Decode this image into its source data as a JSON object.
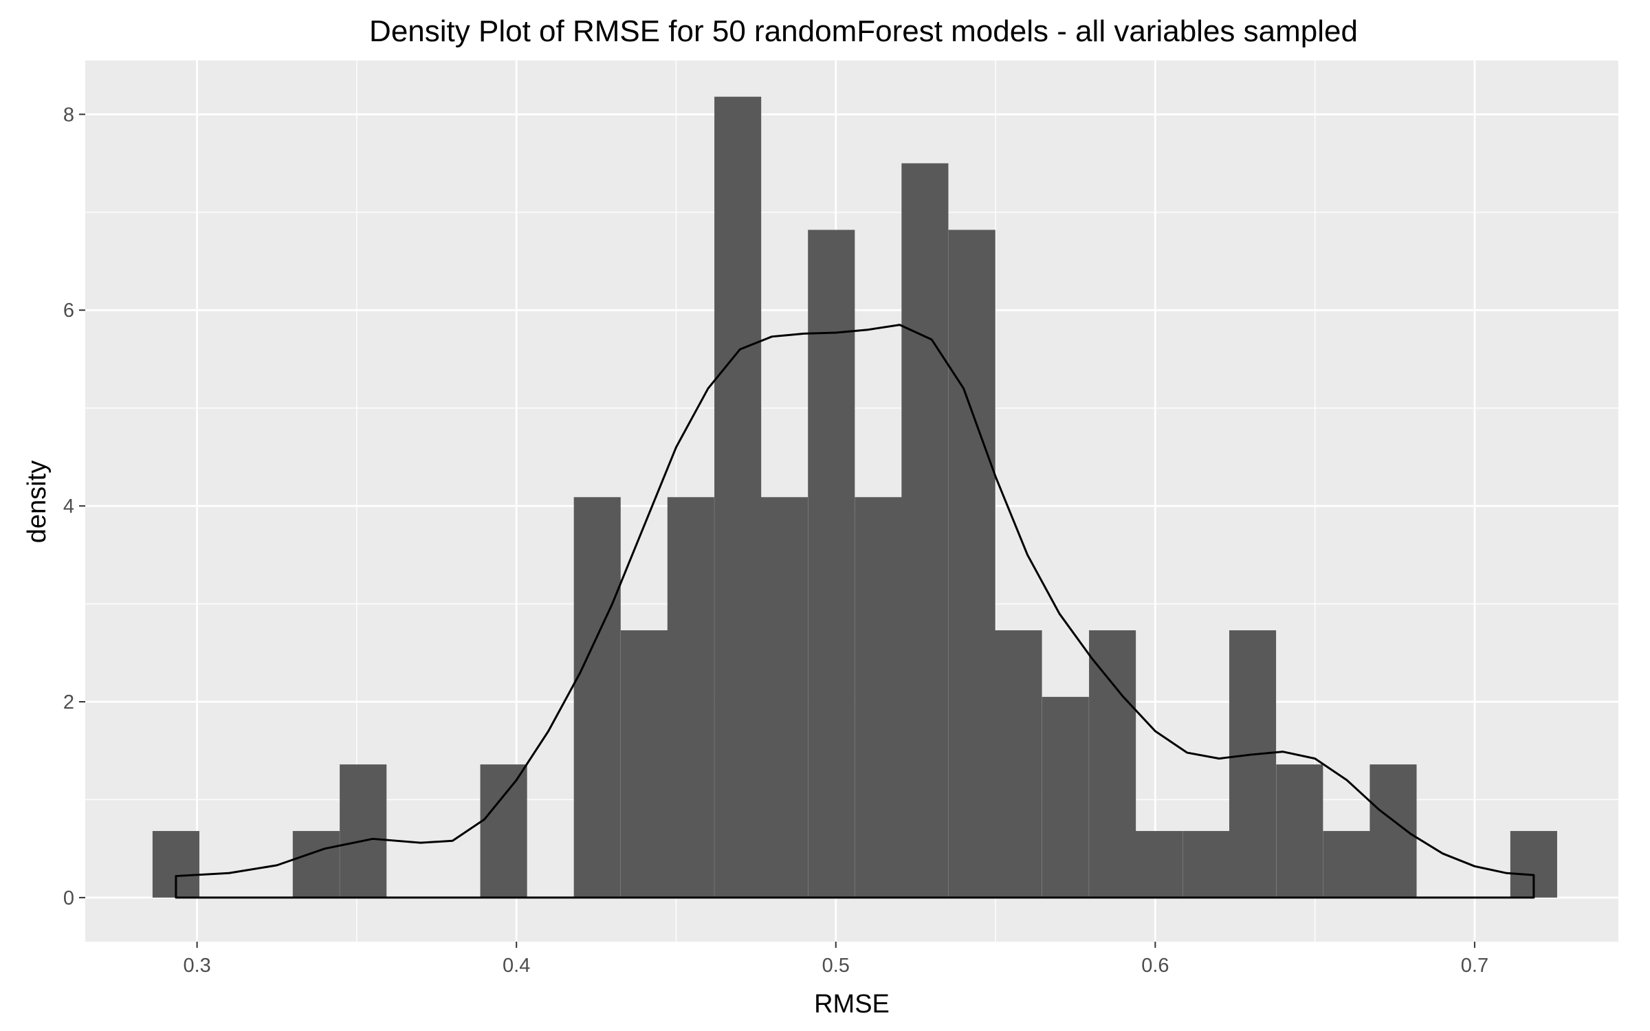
{
  "chart_data": {
    "type": "bar",
    "title": "Density Plot of RMSE for 50 randomForest models - all variables sampled",
    "xlabel": "RMSE",
    "ylabel": "density",
    "xlim": [
      0.265,
      0.745
    ],
    "ylim": [
      -0.45,
      8.55
    ],
    "x_ticks": [
      0.3,
      0.4,
      0.5,
      0.6,
      0.7
    ],
    "x_tick_labels": [
      "0.3",
      "0.4",
      "0.5",
      "0.6",
      "0.7"
    ],
    "y_ticks": [
      0,
      2,
      4,
      6,
      8
    ],
    "y_tick_labels": [
      "0",
      "2",
      "4",
      "6",
      "8"
    ],
    "grid": true,
    "legend": "none",
    "colors": {
      "panel": "#ebebeb",
      "grid": "#ffffff",
      "bar": "#595959",
      "density_line": "#000000",
      "tick": "#333333"
    },
    "histogram": {
      "bin_width": 0.01466,
      "bins": [
        {
          "x": 0.2934,
          "density": 0.68
        },
        {
          "x": 0.308,
          "density": 0
        },
        {
          "x": 0.3227,
          "density": 0
        },
        {
          "x": 0.3373,
          "density": 0.68
        },
        {
          "x": 0.352,
          "density": 1.36
        },
        {
          "x": 0.3667,
          "density": 0
        },
        {
          "x": 0.3813,
          "density": 0
        },
        {
          "x": 0.396,
          "density": 1.36
        },
        {
          "x": 0.4106,
          "density": 0
        },
        {
          "x": 0.4253,
          "density": 4.09
        },
        {
          "x": 0.44,
          "density": 2.73
        },
        {
          "x": 0.4546,
          "density": 4.09
        },
        {
          "x": 0.4693,
          "density": 8.18
        },
        {
          "x": 0.4839,
          "density": 4.09
        },
        {
          "x": 0.4986,
          "density": 6.82
        },
        {
          "x": 0.5133,
          "density": 4.09
        },
        {
          "x": 0.5279,
          "density": 7.5
        },
        {
          "x": 0.5426,
          "density": 6.82
        },
        {
          "x": 0.5572,
          "density": 2.73
        },
        {
          "x": 0.5719,
          "density": 2.05
        },
        {
          "x": 0.5866,
          "density": 2.73
        },
        {
          "x": 0.6012,
          "density": 0.68
        },
        {
          "x": 0.6159,
          "density": 0.68
        },
        {
          "x": 0.6305,
          "density": 2.73
        },
        {
          "x": 0.6452,
          "density": 1.36
        },
        {
          "x": 0.6599,
          "density": 0.68
        },
        {
          "x": 0.6745,
          "density": 1.36
        },
        {
          "x": 0.6892,
          "density": 0
        },
        {
          "x": 0.7038,
          "density": 0
        },
        {
          "x": 0.7185,
          "density": 0.68
        }
      ]
    },
    "density_curve": {
      "x": [
        0.2934,
        0.31,
        0.325,
        0.34,
        0.355,
        0.37,
        0.38,
        0.39,
        0.4,
        0.41,
        0.42,
        0.43,
        0.44,
        0.45,
        0.46,
        0.47,
        0.48,
        0.49,
        0.5,
        0.51,
        0.52,
        0.53,
        0.54,
        0.55,
        0.56,
        0.57,
        0.58,
        0.59,
        0.6,
        0.61,
        0.62,
        0.63,
        0.64,
        0.65,
        0.66,
        0.67,
        0.68,
        0.69,
        0.7,
        0.71,
        0.7185
      ],
      "y": [
        0.22,
        0.25,
        0.33,
        0.5,
        0.6,
        0.56,
        0.58,
        0.8,
        1.2,
        1.7,
        2.3,
        3.0,
        3.8,
        4.6,
        5.2,
        5.6,
        5.73,
        5.76,
        5.77,
        5.8,
        5.85,
        5.7,
        5.2,
        4.3,
        3.5,
        2.9,
        2.45,
        2.05,
        1.7,
        1.48,
        1.42,
        1.46,
        1.49,
        1.42,
        1.2,
        0.9,
        0.65,
        0.45,
        0.32,
        0.25,
        0.23
      ]
    }
  }
}
